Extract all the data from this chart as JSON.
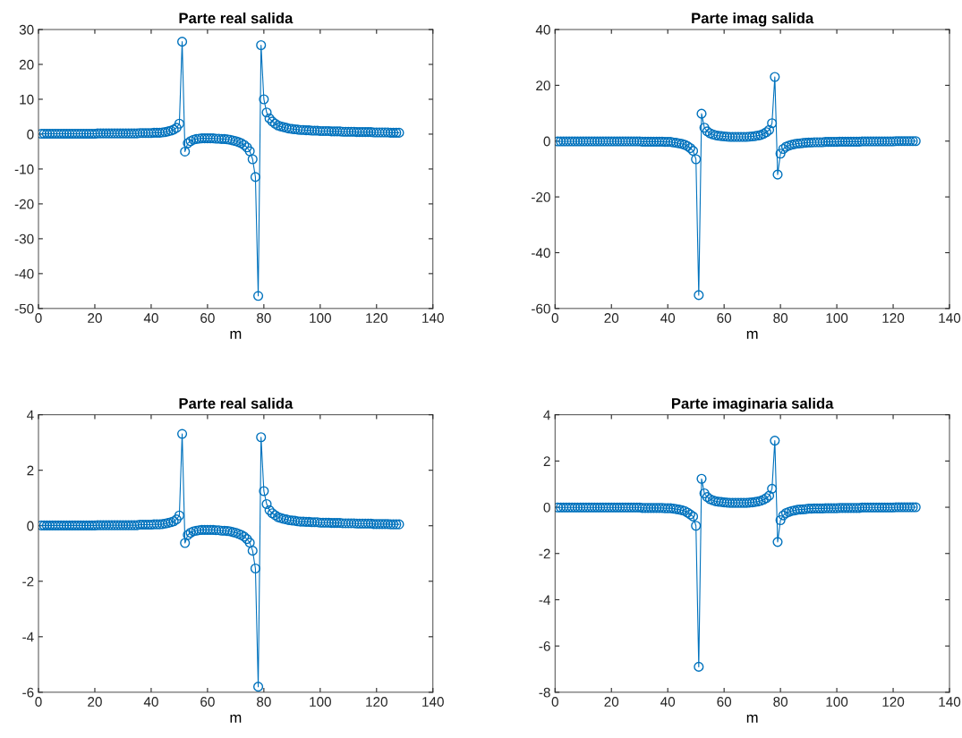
{
  "chart_data": [
    {
      "type": "line",
      "title": "Parte real salida",
      "xlabel": "m",
      "xlim": [
        0,
        140
      ],
      "xticks": [
        0,
        20,
        40,
        60,
        80,
        100,
        120,
        140
      ],
      "ylim": [
        -50,
        30
      ],
      "yticks": [
        -50,
        -40,
        -30,
        -20,
        -10,
        0,
        10,
        20,
        30
      ],
      "marker": "circle",
      "line_style": "solid",
      "grid": false,
      "x": [
        1,
        2,
        3,
        4,
        5,
        6,
        7,
        8,
        9,
        10,
        11,
        12,
        13,
        14,
        15,
        16,
        17,
        18,
        19,
        20,
        21,
        22,
        23,
        24,
        25,
        26,
        27,
        28,
        29,
        30,
        31,
        32,
        33,
        34,
        35,
        36,
        37,
        38,
        39,
        40,
        41,
        42,
        43,
        44,
        45,
        46,
        47,
        48,
        49,
        50,
        51,
        52,
        53,
        54,
        55,
        56,
        57,
        58,
        59,
        60,
        61,
        62,
        63,
        64,
        65,
        66,
        67,
        68,
        69,
        70,
        71,
        72,
        73,
        74,
        75,
        76,
        77,
        78,
        79,
        80,
        81,
        82,
        83,
        84,
        85,
        86,
        87,
        88,
        89,
        90,
        91,
        92,
        93,
        94,
        95,
        96,
        97,
        98,
        99,
        100,
        101,
        102,
        103,
        104,
        105,
        106,
        107,
        108,
        109,
        110,
        111,
        112,
        113,
        114,
        115,
        116,
        117,
        118,
        119,
        120,
        121,
        122,
        123,
        124,
        125,
        126,
        127,
        128
      ],
      "series": [
        {
          "color": "#0072bd",
          "values": [
            0.1,
            0.1,
            0.1,
            0.1,
            0.1,
            0.1,
            0.1,
            0.1,
            0.1,
            0.1,
            0.1,
            0.1,
            0.1,
            0.1,
            0.1,
            0.1,
            0.1,
            0.1,
            0.1,
            0.1,
            0.2,
            0.2,
            0.2,
            0.2,
            0.2,
            0.2,
            0.2,
            0.2,
            0.2,
            0.2,
            0.2,
            0.2,
            0.2,
            0.2,
            0.2,
            0.3,
            0.3,
            0.3,
            0.3,
            0.3,
            0.4,
            0.4,
            0.4,
            0.5,
            0.6,
            0.8,
            1.0,
            1.3,
            1.8,
            3.0,
            26.5,
            -5.0,
            -2.6,
            -2.0,
            -1.6,
            -1.4,
            -1.3,
            -1.2,
            -1.2,
            -1.2,
            -1.2,
            -1.2,
            -1.3,
            -1.3,
            -1.4,
            -1.4,
            -1.5,
            -1.6,
            -1.8,
            -2.0,
            -2.3,
            -2.6,
            -3.1,
            -3.8,
            -4.9,
            -7.2,
            -12.3,
            -46.4,
            25.5,
            10.0,
            6.2,
            4.5,
            3.6,
            3.0,
            2.5,
            2.2,
            2.0,
            1.8,
            1.6,
            1.5,
            1.4,
            1.3,
            1.2,
            1.2,
            1.1,
            1.1,
            1.0,
            1.0,
            1.0,
            0.9,
            0.9,
            0.9,
            0.9,
            0.8,
            0.8,
            0.8,
            0.8,
            0.7,
            0.7,
            0.7,
            0.7,
            0.7,
            0.6,
            0.6,
            0.6,
            0.6,
            0.6,
            0.6,
            0.5,
            0.5,
            0.5,
            0.5,
            0.5,
            0.5,
            0.4,
            0.4,
            0.4,
            0.4
          ]
        }
      ]
    },
    {
      "type": "line",
      "title": "Parte imag salida",
      "xlabel": "m",
      "xlim": [
        0,
        140
      ],
      "xticks": [
        0,
        20,
        40,
        60,
        80,
        100,
        120,
        140
      ],
      "ylim": [
        -60,
        40
      ],
      "yticks": [
        -60,
        -40,
        -20,
        0,
        20,
        40
      ],
      "marker": "circle",
      "line_style": "solid",
      "grid": false,
      "x": [
        1,
        2,
        3,
        4,
        5,
        6,
        7,
        8,
        9,
        10,
        11,
        12,
        13,
        14,
        15,
        16,
        17,
        18,
        19,
        20,
        21,
        22,
        23,
        24,
        25,
        26,
        27,
        28,
        29,
        30,
        31,
        32,
        33,
        34,
        35,
        36,
        37,
        38,
        39,
        40,
        41,
        42,
        43,
        44,
        45,
        46,
        47,
        48,
        49,
        50,
        51,
        52,
        53,
        54,
        55,
        56,
        57,
        58,
        59,
        60,
        61,
        62,
        63,
        64,
        65,
        66,
        67,
        68,
        69,
        70,
        71,
        72,
        73,
        74,
        75,
        76,
        77,
        78,
        79,
        80,
        81,
        82,
        83,
        84,
        85,
        86,
        87,
        88,
        89,
        90,
        91,
        92,
        93,
        94,
        95,
        96,
        97,
        98,
        99,
        100,
        101,
        102,
        103,
        104,
        105,
        106,
        107,
        108,
        109,
        110,
        111,
        112,
        113,
        114,
        115,
        116,
        117,
        118,
        119,
        120,
        121,
        122,
        123,
        124,
        125,
        126,
        127,
        128
      ],
      "series": [
        {
          "color": "#0072bd",
          "values": [
            -0.1,
            -0.1,
            -0.1,
            -0.1,
            -0.1,
            -0.1,
            -0.1,
            -0.1,
            -0.1,
            -0.1,
            -0.1,
            -0.1,
            -0.1,
            -0.1,
            -0.1,
            -0.1,
            -0.1,
            -0.1,
            -0.1,
            -0.1,
            -0.1,
            -0.1,
            -0.1,
            -0.1,
            -0.1,
            -0.1,
            -0.1,
            -0.1,
            -0.1,
            -0.1,
            -0.2,
            -0.2,
            -0.2,
            -0.2,
            -0.2,
            -0.2,
            -0.2,
            -0.2,
            -0.3,
            -0.3,
            -0.3,
            -0.5,
            -0.6,
            -0.8,
            -1.0,
            -1.3,
            -1.8,
            -2.5,
            -3.5,
            -6.5,
            -55.2,
            9.8,
            4.8,
            3.5,
            2.8,
            2.4,
            2.1,
            1.9,
            1.8,
            1.7,
            1.6,
            1.5,
            1.5,
            1.5,
            1.5,
            1.5,
            1.5,
            1.5,
            1.6,
            1.7,
            1.8,
            2.0,
            2.2,
            2.6,
            3.2,
            4.0,
            6.4,
            23.0,
            -12.0,
            -4.5,
            -2.8,
            -2.0,
            -1.6,
            -1.3,
            -1.1,
            -0.9,
            -0.8,
            -0.7,
            -0.6,
            -0.5,
            -0.5,
            -0.4,
            -0.4,
            -0.4,
            -0.4,
            -0.3,
            -0.3,
            -0.3,
            -0.3,
            -0.3,
            -0.2,
            -0.2,
            -0.2,
            -0.2,
            -0.2,
            -0.2,
            -0.2,
            -0.2,
            -0.1,
            -0.1,
            -0.1,
            -0.1,
            -0.1,
            -0.1,
            -0.1,
            -0.1,
            -0.1,
            -0.1,
            -0.1,
            -0.1,
            0,
            0,
            0,
            0,
            0,
            0,
            0,
            0
          ]
        }
      ]
    },
    {
      "type": "line",
      "title": "Parte real salida",
      "xlabel": "m",
      "xlim": [
        0,
        140
      ],
      "xticks": [
        0,
        20,
        40,
        60,
        80,
        100,
        120,
        140
      ],
      "ylim": [
        -6,
        4
      ],
      "yticks": [
        -6,
        -4,
        -2,
        0,
        2,
        4
      ],
      "marker": "circle",
      "line_style": "solid",
      "grid": false,
      "x": [
        1,
        2,
        3,
        4,
        5,
        6,
        7,
        8,
        9,
        10,
        11,
        12,
        13,
        14,
        15,
        16,
        17,
        18,
        19,
        20,
        21,
        22,
        23,
        24,
        25,
        26,
        27,
        28,
        29,
        30,
        31,
        32,
        33,
        34,
        35,
        36,
        37,
        38,
        39,
        40,
        41,
        42,
        43,
        44,
        45,
        46,
        47,
        48,
        49,
        50,
        51,
        52,
        53,
        54,
        55,
        56,
        57,
        58,
        59,
        60,
        61,
        62,
        63,
        64,
        65,
        66,
        67,
        68,
        69,
        70,
        71,
        72,
        73,
        74,
        75,
        76,
        77,
        78,
        79,
        80,
        81,
        82,
        83,
        84,
        85,
        86,
        87,
        88,
        89,
        90,
        91,
        92,
        93,
        94,
        95,
        96,
        97,
        98,
        99,
        100,
        101,
        102,
        103,
        104,
        105,
        106,
        107,
        108,
        109,
        110,
        111,
        112,
        113,
        114,
        115,
        116,
        117,
        118,
        119,
        120,
        121,
        122,
        123,
        124,
        125,
        126,
        127,
        128
      ],
      "series": [
        {
          "color": "#0072bd",
          "values": [
            0.01,
            0.01,
            0.01,
            0.01,
            0.01,
            0.01,
            0.01,
            0.01,
            0.01,
            0.01,
            0.01,
            0.01,
            0.01,
            0.01,
            0.01,
            0.01,
            0.01,
            0.01,
            0.01,
            0.01,
            0.02,
            0.02,
            0.02,
            0.02,
            0.02,
            0.02,
            0.02,
            0.02,
            0.02,
            0.02,
            0.02,
            0.02,
            0.02,
            0.02,
            0.02,
            0.04,
            0.04,
            0.04,
            0.04,
            0.04,
            0.05,
            0.05,
            0.05,
            0.06,
            0.08,
            0.1,
            0.13,
            0.16,
            0.23,
            0.37,
            3.31,
            -0.62,
            -0.33,
            -0.25,
            -0.2,
            -0.18,
            -0.16,
            -0.15,
            -0.15,
            -0.15,
            -0.15,
            -0.15,
            -0.16,
            -0.16,
            -0.18,
            -0.18,
            -0.19,
            -0.2,
            -0.23,
            -0.25,
            -0.29,
            -0.33,
            -0.39,
            -0.48,
            -0.61,
            -0.9,
            -1.54,
            -5.8,
            3.19,
            1.25,
            0.78,
            0.56,
            0.45,
            0.38,
            0.31,
            0.28,
            0.25,
            0.23,
            0.2,
            0.19,
            0.18,
            0.16,
            0.15,
            0.15,
            0.14,
            0.14,
            0.13,
            0.13,
            0.13,
            0.11,
            0.11,
            0.11,
            0.11,
            0.1,
            0.1,
            0.1,
            0.1,
            0.09,
            0.09,
            0.09,
            0.09,
            0.09,
            0.08,
            0.08,
            0.08,
            0.08,
            0.08,
            0.08,
            0.06,
            0.06,
            0.06,
            0.06,
            0.06,
            0.06,
            0.05,
            0.05,
            0.05,
            0.05
          ]
        }
      ]
    },
    {
      "type": "line",
      "title": "Parte imaginaria salida",
      "xlabel": "m",
      "xlim": [
        0,
        140
      ],
      "xticks": [
        0,
        20,
        40,
        60,
        80,
        100,
        120,
        140
      ],
      "ylim": [
        -8,
        4
      ],
      "yticks": [
        -8,
        -6,
        -4,
        -2,
        0,
        2,
        4
      ],
      "marker": "circle",
      "line_style": "solid",
      "grid": false,
      "x": [
        1,
        2,
        3,
        4,
        5,
        6,
        7,
        8,
        9,
        10,
        11,
        12,
        13,
        14,
        15,
        16,
        17,
        18,
        19,
        20,
        21,
        22,
        23,
        24,
        25,
        26,
        27,
        28,
        29,
        30,
        31,
        32,
        33,
        34,
        35,
        36,
        37,
        38,
        39,
        40,
        41,
        42,
        43,
        44,
        45,
        46,
        47,
        48,
        49,
        50,
        51,
        52,
        53,
        54,
        55,
        56,
        57,
        58,
        59,
        60,
        61,
        62,
        63,
        64,
        65,
        66,
        67,
        68,
        69,
        70,
        71,
        72,
        73,
        74,
        75,
        76,
        77,
        78,
        79,
        80,
        81,
        82,
        83,
        84,
        85,
        86,
        87,
        88,
        89,
        90,
        91,
        92,
        93,
        94,
        95,
        96,
        97,
        98,
        99,
        100,
        101,
        102,
        103,
        104,
        105,
        106,
        107,
        108,
        109,
        110,
        111,
        112,
        113,
        114,
        115,
        116,
        117,
        118,
        119,
        120,
        121,
        122,
        123,
        124,
        125,
        126,
        127,
        128
      ],
      "series": [
        {
          "color": "#0072bd",
          "values": [
            -0.01,
            -0.01,
            -0.01,
            -0.01,
            -0.01,
            -0.01,
            -0.01,
            -0.01,
            -0.01,
            -0.01,
            -0.01,
            -0.01,
            -0.01,
            -0.01,
            -0.01,
            -0.01,
            -0.01,
            -0.01,
            -0.01,
            -0.01,
            -0.01,
            -0.01,
            -0.01,
            -0.01,
            -0.01,
            -0.01,
            -0.01,
            -0.01,
            -0.01,
            -0.01,
            -0.03,
            -0.03,
            -0.03,
            -0.03,
            -0.03,
            -0.03,
            -0.03,
            -0.03,
            -0.04,
            -0.04,
            -0.04,
            -0.06,
            -0.08,
            -0.1,
            -0.13,
            -0.16,
            -0.23,
            -0.31,
            -0.4,
            -0.8,
            -6.9,
            1.23,
            0.6,
            0.44,
            0.35,
            0.3,
            0.26,
            0.24,
            0.23,
            0.21,
            0.2,
            0.19,
            0.19,
            0.19,
            0.19,
            0.19,
            0.19,
            0.19,
            0.2,
            0.21,
            0.23,
            0.25,
            0.28,
            0.33,
            0.4,
            0.5,
            0.8,
            2.88,
            -1.5,
            -0.56,
            -0.35,
            -0.25,
            -0.2,
            -0.16,
            -0.14,
            -0.11,
            -0.1,
            -0.09,
            -0.08,
            -0.06,
            -0.06,
            -0.05,
            -0.05,
            -0.05,
            -0.05,
            -0.04,
            -0.04,
            -0.04,
            -0.04,
            -0.04,
            -0.03,
            -0.03,
            -0.03,
            -0.03,
            -0.03,
            -0.03,
            -0.03,
            -0.03,
            -0.01,
            -0.01,
            -0.01,
            -0.01,
            -0.01,
            -0.01,
            -0.01,
            -0.01,
            -0.01,
            -0.01,
            -0.01,
            -0.01,
            0,
            0,
            0,
            0,
            0,
            0,
            0,
            0
          ]
        }
      ]
    }
  ]
}
